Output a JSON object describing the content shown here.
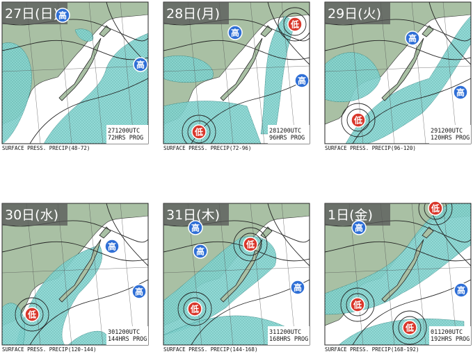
{
  "panels": [
    {
      "day": "27日(日)",
      "markers": [
        "高",
        "高"
      ],
      "stamp": [
        "271200UTC",
        "72HRS PROG"
      ],
      "caption": "SURFACE PRESS. PRECIP(48-72)"
    },
    {
      "day": "28日(月)",
      "markers": [
        "高",
        "低",
        "高",
        "低"
      ],
      "stamp": [
        "281200UTC",
        "96HRS PROG"
      ],
      "caption": "SURFACE PRESS. PRECIP(72-96)"
    },
    {
      "day": "29日(火)",
      "markers": [
        "高",
        "高",
        "低"
      ],
      "stamp": [
        "291200UTC",
        "120HRS PROG"
      ],
      "caption": "SURFACE PRESS. PRECIP(96-120)"
    },
    {
      "day": "30日(水)",
      "markers": [
        "高",
        "高",
        "低"
      ],
      "stamp": [
        "301200UTC",
        "144HRS PROG"
      ],
      "caption": "SURFACE PRESS. PRECIP(120-144)"
    },
    {
      "day": "31日(木)",
      "markers": [
        "高",
        "高",
        "低",
        "高",
        "低"
      ],
      "stamp": [
        "311200UTC",
        "168HRS PROG"
      ],
      "caption": "SURFACE PRESS. PRECIP(144-168)"
    },
    {
      "day": "1日(金)",
      "markers": [
        "低",
        "高",
        "高",
        "低",
        "低"
      ],
      "stamp": [
        "011200UTC",
        "192HRS PROG"
      ],
      "caption": "SURFACE PRESS. PRECIP(168-192)"
    }
  ]
}
